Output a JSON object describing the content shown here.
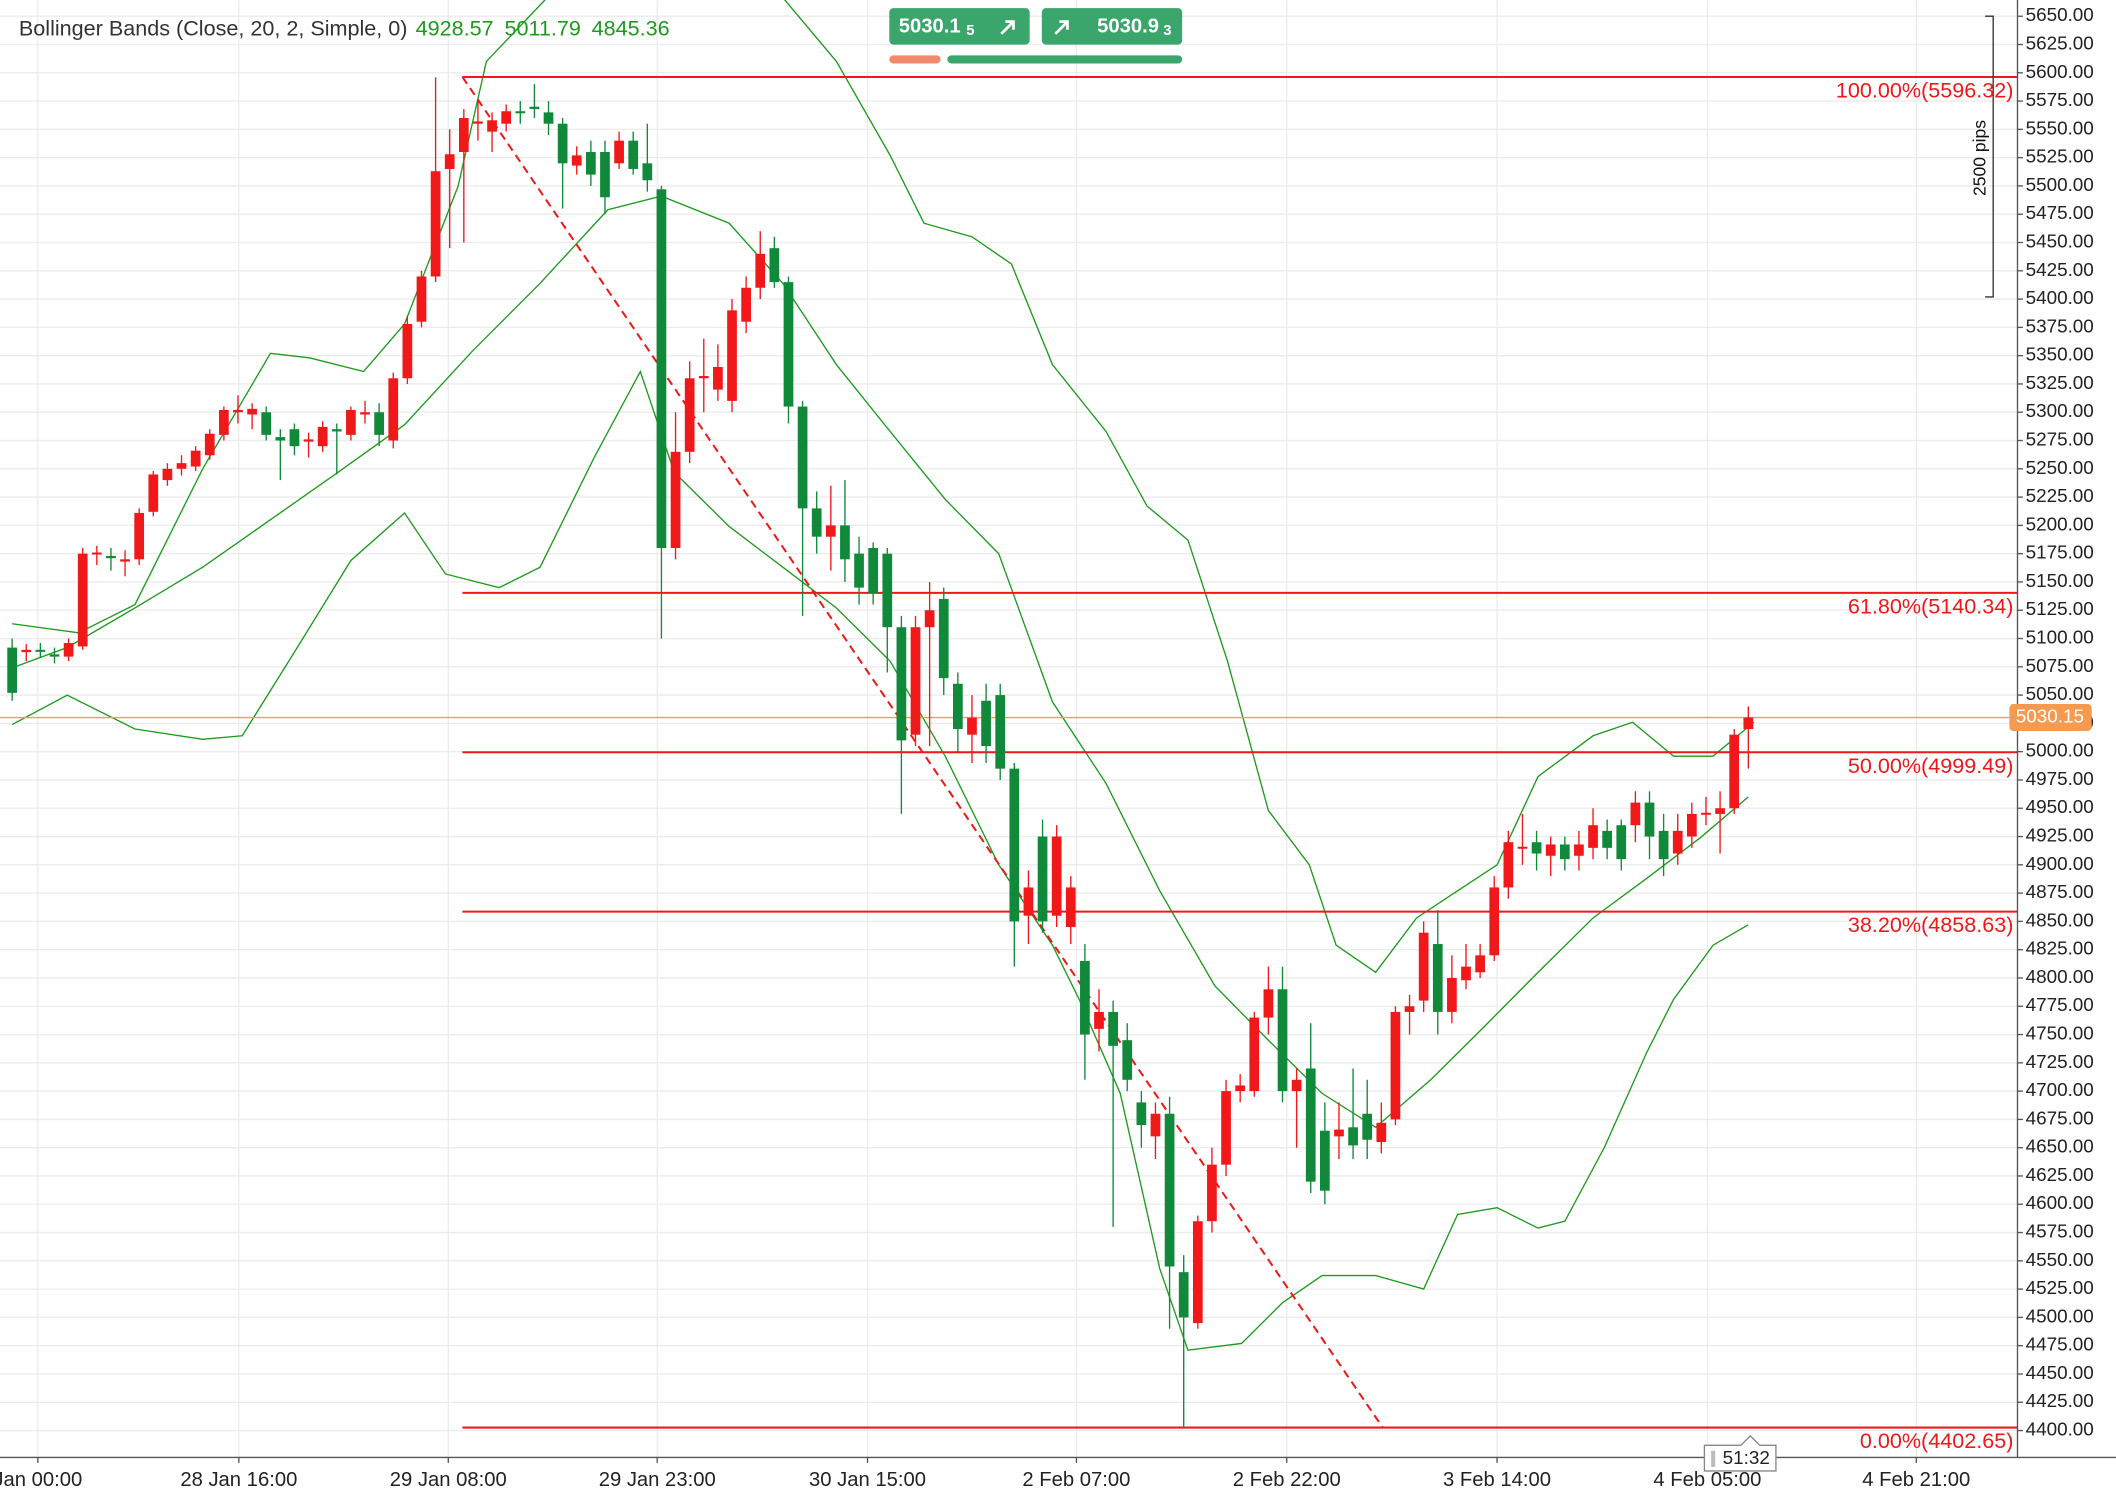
{
  "chart_data": {
    "type": "candlestick",
    "indicator": {
      "label": "Bollinger Bands (Close, 20, 2, Simple, 0)",
      "values": [
        4928.57,
        5011.79,
        4845.36
      ],
      "color": "#1f9a1f"
    },
    "trade_panel": {
      "sell": {
        "price": "5030.1",
        "pip": "5"
      },
      "buy": {
        "price": "5030.9",
        "pip": "3"
      }
    },
    "ruler": {
      "label": "2500 pips"
    },
    "countdown": "51:32",
    "current_price": {
      "value": 5030.15,
      "color": "#f59a4e"
    },
    "up_color": "#f01818",
    "down_color": "#10893a",
    "xlim": [
      -0.86,
      142.07
    ],
    "ylim": [
      4376.2,
      5664.3
    ],
    "grid": true,
    "xticks": [
      {
        "value": 1.82,
        "label": "Jan 00:00"
      },
      {
        "value": 16.06,
        "label": "28 Jan 16:00"
      },
      {
        "value": 30.9,
        "label": "29 Jan 08:00"
      },
      {
        "value": 45.7,
        "label": "29 Jan 23:00"
      },
      {
        "value": 60.6,
        "label": "30 Jan 15:00"
      },
      {
        "value": 75.4,
        "label": "2 Feb 07:00"
      },
      {
        "value": 90.3,
        "label": "2 Feb 22:00"
      },
      {
        "value": 105.2,
        "label": "3 Feb 14:00"
      },
      {
        "value": 120.1,
        "label": "4 Feb 05:00"
      },
      {
        "value": 134.9,
        "label": "4 Feb 21:00"
      }
    ],
    "yticks": [
      {
        "value": 4400,
        "label": "4400.00"
      },
      {
        "value": 4425,
        "label": "4425.00"
      },
      {
        "value": 4450,
        "label": "4450.00"
      },
      {
        "value": 4475,
        "label": "4475.00"
      },
      {
        "value": 4500,
        "label": "4500.00"
      },
      {
        "value": 4525,
        "label": "4525.00"
      },
      {
        "value": 4550,
        "label": "4550.00"
      },
      {
        "value": 4575,
        "label": "4575.00"
      },
      {
        "value": 4600,
        "label": "4600.00"
      },
      {
        "value": 4625,
        "label": "4625.00"
      },
      {
        "value": 4650,
        "label": "4650.00"
      },
      {
        "value": 4675,
        "label": "4675.00"
      },
      {
        "value": 4700,
        "label": "4700.00"
      },
      {
        "value": 4725,
        "label": "4725.00"
      },
      {
        "value": 4750,
        "label": "4750.00"
      },
      {
        "value": 4775,
        "label": "4775.00"
      },
      {
        "value": 4800,
        "label": "4800.00"
      },
      {
        "value": 4825,
        "label": "4825.00"
      },
      {
        "value": 4850,
        "label": "4850.00"
      },
      {
        "value": 4875,
        "label": "4875.00"
      },
      {
        "value": 4900,
        "label": "4900.00"
      },
      {
        "value": 4925,
        "label": "4925.00"
      },
      {
        "value": 4950,
        "label": "4950.00"
      },
      {
        "value": 4975,
        "label": "4975.00"
      },
      {
        "value": 5000,
        "label": "5000.00"
      },
      {
        "value": 5025,
        "label": "5025.00"
      },
      {
        "value": 5050,
        "label": "5050.00"
      },
      {
        "value": 5075,
        "label": "5075.00"
      },
      {
        "value": 5100,
        "label": "5100.00"
      },
      {
        "value": 5125,
        "label": "5125.00"
      },
      {
        "value": 5150,
        "label": "5150.00"
      },
      {
        "value": 5175,
        "label": "5175.00"
      },
      {
        "value": 5200,
        "label": "5200.00"
      },
      {
        "value": 5225,
        "label": "5225.00"
      },
      {
        "value": 5250,
        "label": "5250.00"
      },
      {
        "value": 5275,
        "label": "5275.00"
      },
      {
        "value": 5300,
        "label": "5300.00"
      },
      {
        "value": 5325,
        "label": "5325.00"
      },
      {
        "value": 5350,
        "label": "5350.00"
      },
      {
        "value": 5375,
        "label": "5375.00"
      },
      {
        "value": 5400,
        "label": "5400.00"
      },
      {
        "value": 5425,
        "label": "5425.00"
      },
      {
        "value": 5450,
        "label": "5450.00"
      },
      {
        "value": 5475,
        "label": "5475.00"
      },
      {
        "value": 5500,
        "label": "5500.00"
      },
      {
        "value": 5525,
        "label": "5525.00"
      },
      {
        "value": 5550,
        "label": "5550.00"
      },
      {
        "value": 5575,
        "label": "5575.00"
      },
      {
        "value": 5600,
        "label": "5600.00"
      },
      {
        "value": 5625,
        "label": "5625.00"
      },
      {
        "value": 5650,
        "label": "5650.00"
      }
    ],
    "open": [
      5092,
      5088,
      5090,
      5086,
      5084,
      5093,
      5175,
      5173,
      5168,
      5170,
      5212,
      5240,
      5250,
      5252,
      5262,
      5280,
      5300,
      5298,
      5300,
      5278,
      5285,
      5274,
      5270,
      5285,
      5280,
      5298,
      5300,
      5275,
      5330,
      5380,
      5420,
      5515,
      5530,
      5555,
      5548,
      5555,
      5566,
      5570,
      5565,
      5555,
      5518,
      5530,
      5530,
      5520,
      5540,
      5520,
      5497,
      5180,
      5265,
      5330,
      5320,
      5310,
      5380,
      5410,
      5445,
      5415,
      5305,
      5215,
      5190,
      5200,
      5175,
      5180,
      5175,
      5110,
      5015,
      5110,
      5135,
      5060,
      5015,
      5045,
      5050,
      4985,
      4855,
      4925,
      4855,
      4845,
      4815,
      4755,
      4770,
      4745,
      4690,
      4660,
      4680,
      4540,
      4495,
      4585,
      4635,
      4700,
      4700,
      4765,
      4790,
      4700,
      4720,
      4665,
      4660,
      4668,
      4680,
      4655,
      4675,
      4770,
      4780,
      4830,
      4770,
      4798,
      4805,
      4820,
      4880,
      4915,
      4920,
      4908,
      4918,
      4908,
      4915,
      4930,
      4935,
      4935,
      4955,
      4930,
      4910,
      4925,
      4945,
      4945,
      4950,
      5020
    ],
    "high": [
      5100,
      5095,
      5096,
      5092,
      5100,
      5180,
      5182,
      5180,
      5178,
      5215,
      5248,
      5255,
      5262,
      5270,
      5285,
      5305,
      5315,
      5308,
      5305,
      5285,
      5290,
      5282,
      5292,
      5290,
      5305,
      5310,
      5308,
      5335,
      5385,
      5425,
      5596,
      5550,
      5568,
      5575,
      5565,
      5572,
      5575,
      5590,
      5575,
      5560,
      5535,
      5540,
      5540,
      5548,
      5548,
      5555,
      5500,
      5300,
      5345,
      5365,
      5360,
      5400,
      5420,
      5460,
      5455,
      5420,
      5310,
      5230,
      5235,
      5240,
      5190,
      5185,
      5180,
      5120,
      5120,
      5150,
      5145,
      5070,
      5050,
      5060,
      5060,
      4990,
      4895,
      4940,
      4935,
      4890,
      4830,
      4790,
      4780,
      4760,
      4700,
      4690,
      4695,
      4555,
      4590,
      4650,
      4710,
      4715,
      4770,
      4810,
      4810,
      4720,
      4760,
      4690,
      4690,
      4720,
      4710,
      4690,
      4775,
      4785,
      4850,
      4860,
      4820,
      4830,
      4830,
      4890,
      4930,
      4945,
      4930,
      4925,
      4925,
      4930,
      4950,
      4940,
      4940,
      4965,
      4965,
      4945,
      4945,
      4955,
      4960,
      4965,
      5020,
      5040
    ],
    "low": [
      5045,
      5080,
      5083,
      5078,
      5080,
      5090,
      5165,
      5160,
      5155,
      5165,
      5208,
      5235,
      5244,
      5248,
      5258,
      5275,
      5290,
      5285,
      5275,
      5240,
      5262,
      5260,
      5265,
      5245,
      5275,
      5290,
      5270,
      5268,
      5325,
      5375,
      5415,
      5445,
      5450,
      5540,
      5530,
      5548,
      5555,
      5560,
      5545,
      5480,
      5510,
      5500,
      5475,
      5515,
      5510,
      5495,
      5100,
      5170,
      5255,
      5300,
      5310,
      5300,
      5370,
      5400,
      5410,
      5290,
      5120,
      5175,
      5160,
      5150,
      5130,
      5130,
      5070,
      4945,
      5005,
      5005,
      5050,
      5000,
      4990,
      4990,
      4975,
      4810,
      4830,
      4840,
      4845,
      4830,
      4710,
      4735,
      4580,
      4700,
      4650,
      4640,
      4490,
      4402,
      4490,
      4575,
      4625,
      4690,
      4695,
      4750,
      4690,
      4650,
      4610,
      4600,
      4640,
      4640,
      4640,
      4645,
      4670,
      4750,
      4770,
      4750,
      4760,
      4790,
      4800,
      4815,
      4870,
      4900,
      4895,
      4890,
      4895,
      4895,
      4905,
      4905,
      4895,
      4920,
      4905,
      4890,
      4900,
      4915,
      4935,
      4910,
      4945,
      4985
    ],
    "close": [
      5052,
      5090,
      5089,
      5084,
      5096,
      5175,
      5176,
      5171,
      5170,
      5211,
      5245,
      5250,
      5255,
      5266,
      5281,
      5302,
      5302,
      5303,
      5280,
      5275,
      5270,
      5276,
      5287,
      5283,
      5302,
      5300,
      5280,
      5330,
      5378,
      5420,
      5513,
      5528,
      5560,
      5557,
      5558,
      5566,
      5565,
      5568,
      5555,
      5520,
      5527,
      5510,
      5490,
      5540,
      5515,
      5505,
      5180,
      5265,
      5330,
      5332,
      5340,
      5390,
      5410,
      5440,
      5415,
      5305,
      5215,
      5190,
      5200,
      5170,
      5145,
      5140,
      5110,
      5010,
      5110,
      5125,
      5065,
      5020,
      5030,
      5005,
      4985,
      4850,
      4880,
      4850,
      4925,
      4880,
      4750,
      4770,
      4740,
      4710,
      4670,
      4680,
      4545,
      4500,
      4585,
      4635,
      4700,
      4705,
      4765,
      4790,
      4700,
      4710,
      4620,
      4612,
      4666,
      4652,
      4657,
      4672,
      4770,
      4775,
      4840,
      4770,
      4800,
      4810,
      4820,
      4880,
      4920,
      4916,
      4910,
      4918,
      4905,
      4918,
      4935,
      4915,
      4905,
      4955,
      4925,
      4905,
      4930,
      4945,
      4946,
      4950,
      5015,
      5030.15
    ],
    "bands": [
      {
        "name": "upper",
        "color": "#1f9a1f",
        "x": [
          0,
          4.7,
          8.7,
          13.5,
          18.3,
          21.1,
          24.9,
          27.8,
          31.6,
          33.6,
          42,
          51,
          58.4,
          62.2,
          64.6,
          68,
          70.8,
          73.7,
          77.5,
          80.4,
          83.3,
          86.1,
          89,
          91.9,
          93.8,
          96.6,
          99.5,
          102.4,
          105.2,
          108.1,
          112,
          114.8,
          117.7,
          120.5,
          123.4
        ],
        "values": [
          5113,
          5105,
          5130,
          5250,
          5352,
          5348,
          5336,
          5378,
          5500,
          5610,
          5720,
          5720,
          5610,
          5527,
          5467,
          5455,
          5431,
          5342,
          5283,
          5217,
          5187,
          5080,
          4948,
          4900,
          4829,
          4805,
          4853,
          4877,
          4900,
          4978,
          5014,
          5026,
          4996,
          4996,
          5026
        ]
      },
      {
        "name": "middle",
        "color": "#1f9a1f",
        "x": [
          0,
          3.9,
          8.7,
          13.5,
          18.3,
          23.1,
          27.8,
          32.6,
          37.4,
          42.2,
          46,
          50.8,
          54.6,
          58.4,
          62.2,
          66.1,
          69.9,
          73.7,
          77.5,
          81.3,
          85.2,
          89,
          92.8,
          96.6,
          100.5,
          104.3,
          108.1,
          112,
          115.8,
          119.6,
          123
        ],
        "values": [
          5074,
          5092,
          5127,
          5163,
          5205,
          5247,
          5289,
          5354,
          5414,
          5479,
          5491,
          5467,
          5414,
          5342,
          5283,
          5223,
          5175,
          5044,
          4972,
          4877,
          4793,
          4745,
          4698,
          4668,
          4710,
          4757,
          4805,
          4853,
          4888,
          4924,
          4960
        ]
      },
      {
        "name": "lower",
        "color": "#1f9a1f",
        "x": [
          0,
          3.9,
          8.7,
          13.5,
          16.3,
          20.2,
          24,
          27.8,
          30.7,
          34.5,
          37.4,
          41.2,
          44.5,
          46.9,
          50.8,
          54.6,
          58.4,
          62.2,
          66.1,
          69.9,
          73.7,
          75.6,
          78.5,
          81.3,
          83.3,
          87.1,
          90,
          92.8,
          96.6,
          100,
          102.4,
          105.2,
          108.1,
          110,
          112.8,
          115.8,
          117.7,
          120.5,
          123
        ],
        "values": [
          5024,
          5050,
          5020,
          5011,
          5014,
          5092,
          5169,
          5211,
          5157,
          5145,
          5163,
          5259,
          5336,
          5247,
          5199,
          5163,
          5127,
          5080,
          4996,
          4900,
          4829,
          4781,
          4698,
          4543,
          4471,
          4477,
          4513,
          4537,
          4537,
          4525,
          4591,
          4597,
          4579,
          4585,
          4650,
          4734,
          4781,
          4829,
          4847
        ]
      }
    ],
    "fib_color": "#f01818",
    "fib_levels": [
      {
        "ratio": 100,
        "price": 5596.32,
        "label": "100.00%(5596.32)"
      },
      {
        "ratio": 61.8,
        "price": 5140.34,
        "label": "61.80%(5140.34)"
      },
      {
        "ratio": 50,
        "price": 4999.49,
        "label": "50.00%(4999.49)"
      },
      {
        "ratio": 38.2,
        "price": 4858.63,
        "label": "38.20%(4858.63)"
      },
      {
        "ratio": 0,
        "price": 4402.65,
        "label": "0.00%(4402.65)"
      }
    ],
    "trendline": {
      "x": [
        31.9,
        97.1
      ],
      "y": [
        5596.32,
        4402.65
      ]
    }
  }
}
